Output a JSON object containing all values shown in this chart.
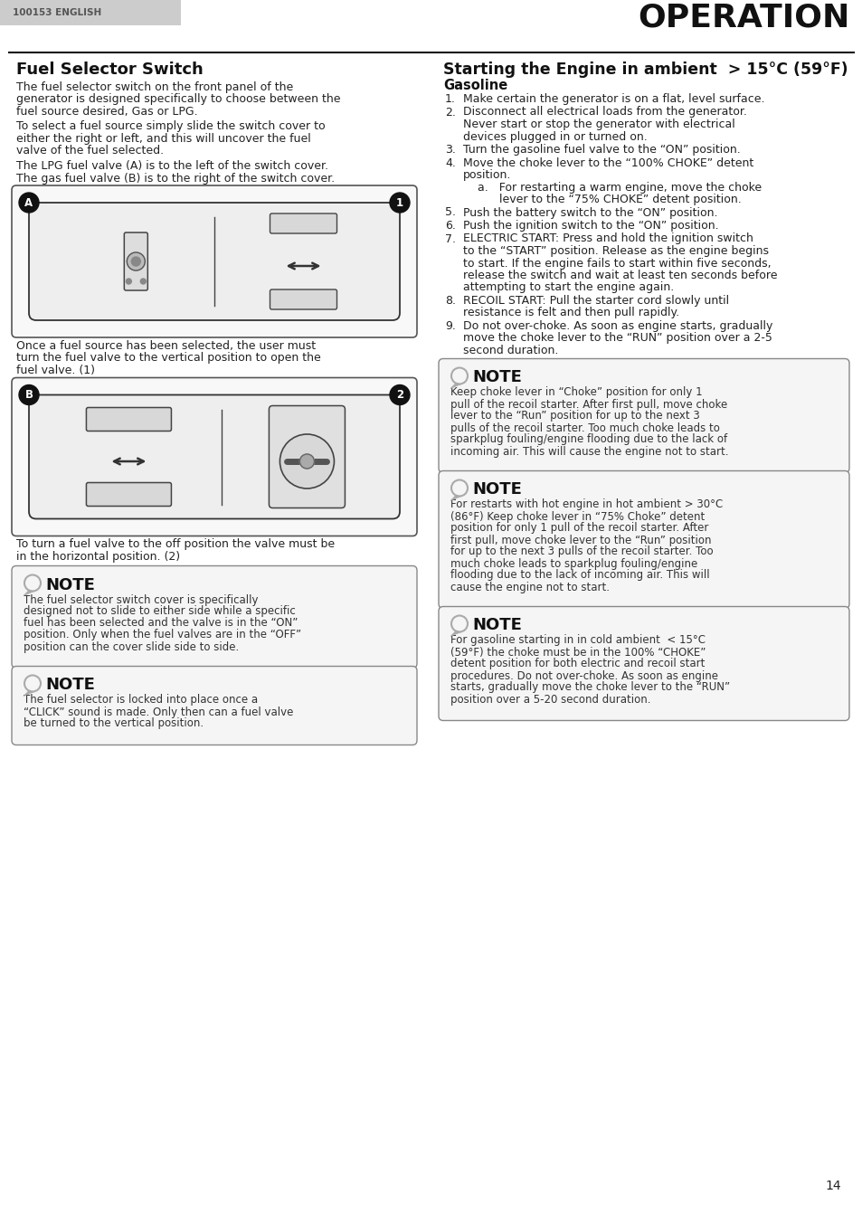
{
  "page_bg": "#ffffff",
  "header_bg": "#cccccc",
  "header_text": "100153 ENGLISH",
  "header_text_color": "#555555",
  "title_right": "OPERATION",
  "title_right_color": "#111111",
  "left_section_title": "Fuel Selector Switch",
  "left_body1": "The fuel selector switch on the front panel of the\ngenerator is designed specifically to choose between the\nfuel source desired, Gas or LPG.",
  "left_body2": "To select a fuel source simply slide the switch cover to\neither the right or left, and this will uncover the fuel\nvalve of the fuel selected.",
  "left_body3": "The LPG fuel valve (A) is to the left of the switch cover.\nThe gas fuel valve (B) is to the right of the switch cover.",
  "left_body4": "Once a fuel source has been selected, the user must\nturn the fuel valve to the vertical position to open the\nfuel valve. (1)",
  "left_body5": "To turn a fuel valve to the off position the valve must be\nin the horizontal position. (2)",
  "note1_title": "NOTE",
  "note1_body": "The fuel selector switch cover is specifically\ndesigned not to slide to either side while a specific\nfuel has been selected and the valve is in the “ON”\nposition. Only when the fuel valves are in the “OFF”\nposition can the cover slide side to side.",
  "note2_title": "NOTE",
  "note2_body": "The fuel selector is locked into place once a\n“CLICK” sound is made. Only then can a fuel valve\nbe turned to the vertical position.",
  "right_section_title": "Starting the Engine in ambient  > 15°C (59°F)",
  "right_sub_title": "Gasoline",
  "right_steps": [
    "Make certain the generator is on a flat, level surface.",
    "Disconnect all electrical loads from the generator.\nNever start or stop the generator with electrical\ndevices plugged in or turned on.",
    "Turn the gasoline fuel valve to the “ON” position.",
    "Move the choke lever to the “100% CHOKE” detent\nposition.\n    a.   For restarting a warm engine, move the choke\n          lever to the “75% CHOKE” detent position.",
    "Push the battery switch to the “ON” position.",
    "Push the ignition switch to the “ON” position.",
    "ELECTRIC START: Press and hold the ignition switch\nto the “START” position. Release as the engine begins\nto start. If the engine fails to start within five seconds,\nrelease the switch and wait at least ten seconds before\nattempting to start the engine again.",
    "RECOIL START: Pull the starter cord slowly until\nresistance is felt and then pull rapidly.",
    "Do not over-choke. As soon as engine starts, gradually\nmove the choke lever to the “RUN” position over a 2-5\nsecond duration."
  ],
  "note3_title": "NOTE",
  "note3_body": "Keep choke lever in “Choke” position for only 1\npull of the recoil starter. After first pull, move choke\nlever to the “Run” position for up to the next 3\npulls of the recoil starter. Too much choke leads to\nsparkplug fouling/engine flooding due to the lack of\nincoming air. This will cause the engine not to start.",
  "note4_title": "NOTE",
  "note4_body": "For restarts with hot engine in hot ambient > 30°C\n(86°F) Keep choke lever in “75% Choke” detent\nposition for only 1 pull of the recoil starter. After\nfirst pull, move choke lever to the “Run” position\nfor up to the next 3 pulls of the recoil starter. Too\nmuch choke leads to sparkplug fouling/engine\nflooding due to the lack of incoming air. This will\ncause the engine not to start.",
  "note5_title": "NOTE",
  "note5_body": "For gasoline starting in in cold ambient  < 15°C\n(59°F) the choke must be in the 100% “CHOKE”\ndetent position for both electric and recoil start\nprocedures. Do not over-choke. As soon as engine\nstarts, gradually move the choke lever to the “RUN”\nposition over a 5-20 second duration.",
  "page_number": "14"
}
